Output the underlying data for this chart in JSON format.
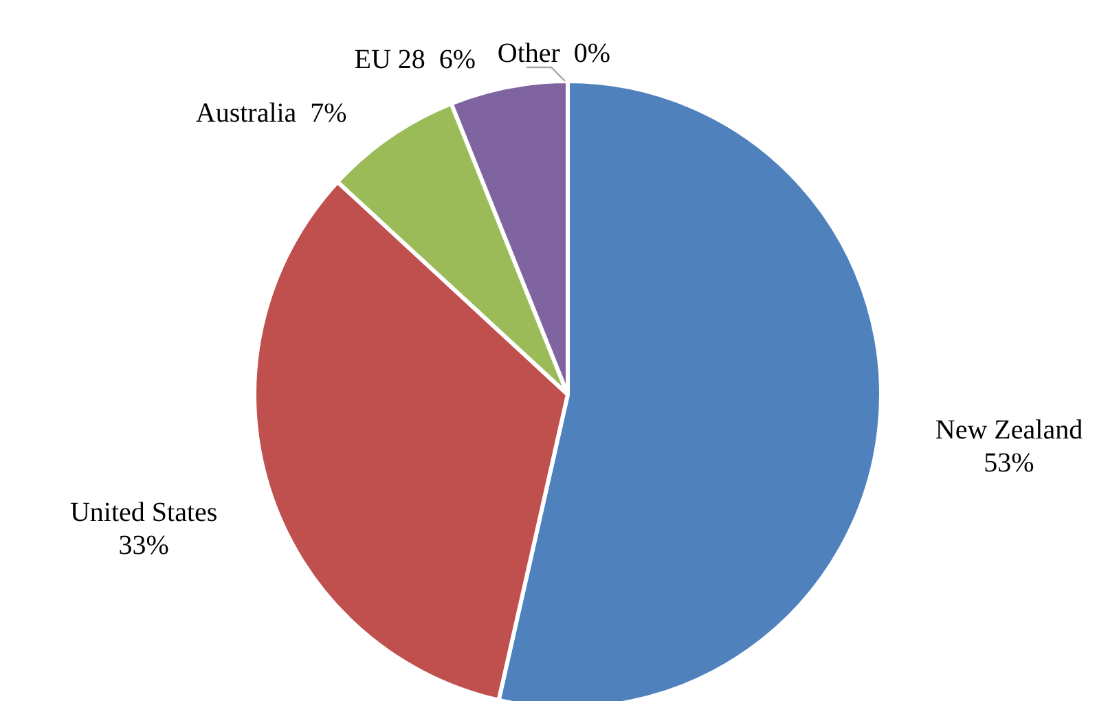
{
  "chart_data": {
    "type": "pie",
    "categories": [
      "New Zealand",
      "United States",
      "Australia",
      "EU 28",
      "Other"
    ],
    "values": [
      53,
      33,
      7,
      6,
      0
    ],
    "value_labels": [
      "53%",
      "33%",
      "7%",
      "6%",
      "0%"
    ],
    "colors": [
      "#4f81bd",
      "#c0504d",
      "#9bbb59",
      "#8064a2",
      "#a5a5a5"
    ],
    "legend": false
  }
}
